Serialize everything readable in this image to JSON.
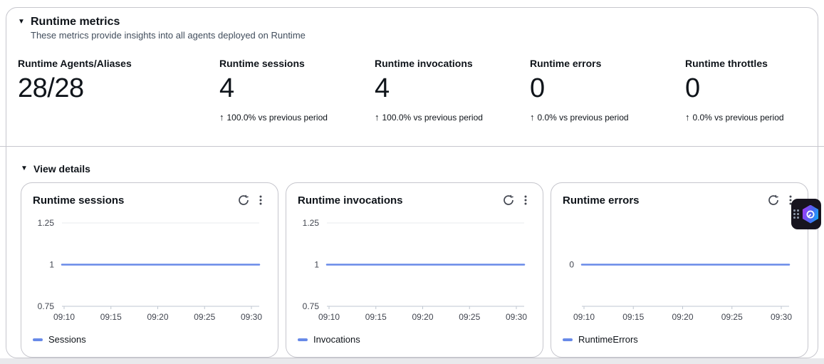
{
  "panel": {
    "title": "Runtime metrics",
    "subtitle": "These metrics provide insights into all agents deployed on Runtime"
  },
  "icons": {
    "collapse": "▼",
    "trend_up": "↑"
  },
  "metrics": [
    {
      "label": "Runtime Agents/Aliases",
      "value": "28/28",
      "arrow": "",
      "delta": ""
    },
    {
      "label": "Runtime sessions",
      "value": "4",
      "arrow": "↑",
      "delta": "100.0% vs previous period"
    },
    {
      "label": "Runtime invocations",
      "value": "4",
      "arrow": "↑",
      "delta": "100.0% vs previous period"
    },
    {
      "label": "Runtime errors",
      "value": "0",
      "arrow": "↑",
      "delta": "0.0% vs previous period"
    },
    {
      "label": "Runtime throttles",
      "value": "0",
      "arrow": "↑",
      "delta": "0.0% vs previous period"
    }
  ],
  "view_details": {
    "label": "View details"
  },
  "chart_data": [
    {
      "type": "line",
      "title": "Runtime sessions",
      "x": [
        "09:10",
        "09:15",
        "09:20",
        "09:25",
        "09:30"
      ],
      "series": [
        {
          "name": "Sessions",
          "values": [
            1,
            1,
            1,
            1,
            1
          ]
        }
      ],
      "ylim": [
        0.75,
        1.25
      ],
      "yticks": [
        1.25,
        1,
        0.75
      ],
      "grid": true,
      "legend_position": "bottom",
      "colors": [
        "#688AE8"
      ]
    },
    {
      "type": "line",
      "title": "Runtime invocations",
      "x": [
        "09:10",
        "09:15",
        "09:20",
        "09:25",
        "09:30"
      ],
      "series": [
        {
          "name": "Invocations",
          "values": [
            1,
            1,
            1,
            1,
            1
          ]
        }
      ],
      "ylim": [
        0.75,
        1.25
      ],
      "yticks": [
        1.25,
        1,
        0.75
      ],
      "grid": true,
      "legend_position": "bottom",
      "colors": [
        "#688AE8"
      ]
    },
    {
      "type": "line",
      "title": "Runtime errors",
      "x": [
        "09:10",
        "09:15",
        "09:20",
        "09:25",
        "09:30"
      ],
      "series": [
        {
          "name": "RuntimeErrors",
          "values": [
            0,
            0,
            0,
            0,
            0
          ]
        }
      ],
      "ylim": [
        -0.25,
        0.25
      ],
      "yticks": [
        0
      ],
      "grid": true,
      "legend_position": "bottom",
      "colors": [
        "#688AE8"
      ]
    }
  ],
  "colors": {
    "line": "#688AE8",
    "container_border": "#c6c6cd",
    "grid": "#e9ebed",
    "axis": "#bfc7d1",
    "heading": "#0f141a",
    "secondary_text": "#414d5c",
    "tick_text": "#424650",
    "assistant_bg": "#17141f",
    "assistant_gradient": [
      "#a33bfa",
      "#4b66f0",
      "#0fb4ff"
    ]
  }
}
